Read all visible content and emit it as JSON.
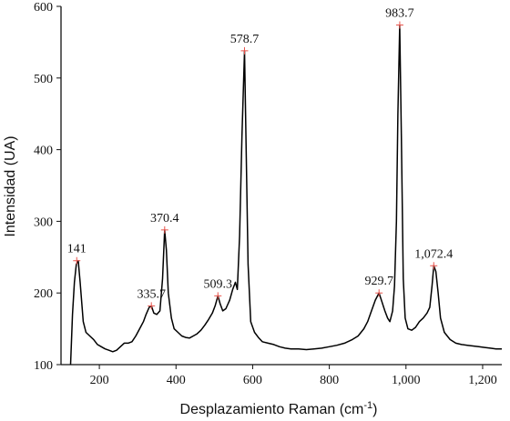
{
  "chart_data": {
    "type": "line",
    "title": "",
    "xlabel": "Desplazamiento Raman (cm",
    "xlabel_superscript": "-1",
    "xlabel_close": ")",
    "ylabel": "Intensidad (UA)",
    "xlim": [
      100,
      1250
    ],
    "ylim": [
      100,
      600
    ],
    "x_ticks": [
      {
        "value": 200,
        "label": "200"
      },
      {
        "value": 400,
        "label": "400"
      },
      {
        "value": 600,
        "label": "600"
      },
      {
        "value": 800,
        "label": "800"
      },
      {
        "value": 1000,
        "label": "1,000"
      },
      {
        "value": 1200,
        "label": "1,200"
      }
    ],
    "y_ticks": [
      {
        "value": 100,
        "label": "100"
      },
      {
        "value": 200,
        "label": "200"
      },
      {
        "value": 300,
        "label": "300"
      },
      {
        "value": 400,
        "label": "400"
      },
      {
        "value": 500,
        "label": "500"
      },
      {
        "value": 600,
        "label": "600"
      }
    ],
    "grid": false,
    "legend": "none",
    "colors": {
      "line": "#000000",
      "marker": "#e8524a",
      "axis": "#111111"
    },
    "series": [
      {
        "x": [
          125,
          130,
          135,
          140,
          145,
          150,
          158,
          165,
          175,
          185,
          195,
          205,
          215,
          225,
          235,
          245,
          255,
          265,
          275,
          285,
          295,
          305,
          315,
          322,
          330,
          335.7,
          342,
          350,
          358,
          365,
          370.4,
          375,
          380,
          388,
          395,
          405,
          415,
          425,
          435,
          445,
          455,
          465,
          475,
          485,
          495,
          502,
          509.3,
          515,
          522,
          530,
          540,
          548,
          555,
          560,
          566,
          572,
          578.7,
          583,
          588,
          595,
          605,
          615,
          625,
          640,
          655,
          670,
          685,
          700,
          720,
          740,
          760,
          780,
          800,
          820,
          840,
          860,
          875,
          890,
          900,
          910,
          920,
          929.7,
          937,
          945,
          952,
          958,
          965,
          970,
          975,
          979,
          983.7,
          988,
          993,
          998,
          1005,
          1015,
          1025,
          1035,
          1045,
          1055,
          1062,
          1068,
          1072.4,
          1078,
          1084,
          1090,
          1100,
          1115,
          1130,
          1145,
          1160,
          1175,
          1190,
          1205,
          1220,
          1235,
          1250
        ],
        "y": [
          100,
          170,
          215,
          240,
          245,
          215,
          160,
          145,
          140,
          135,
          128,
          125,
          122,
          120,
          118,
          120,
          125,
          130,
          130,
          132,
          140,
          150,
          160,
          170,
          180,
          182,
          172,
          170,
          175,
          220,
          288,
          260,
          200,
          165,
          150,
          145,
          140,
          138,
          137,
          140,
          143,
          148,
          155,
          163,
          172,
          182,
          196,
          185,
          175,
          178,
          190,
          205,
          215,
          205,
          280,
          420,
          538,
          400,
          240,
          160,
          145,
          138,
          132,
          130,
          128,
          125,
          123,
          122,
          122,
          121,
          122,
          123,
          125,
          127,
          130,
          135,
          140,
          150,
          160,
          175,
          190,
          200,
          188,
          175,
          165,
          160,
          175,
          210,
          300,
          450,
          574,
          420,
          220,
          165,
          150,
          148,
          152,
          160,
          165,
          172,
          180,
          210,
          238,
          230,
          200,
          165,
          145,
          135,
          130,
          128,
          127,
          126,
          125,
          124,
          123,
          122,
          122
        ]
      }
    ],
    "peaks": [
      {
        "x": 141,
        "y": 245,
        "label": "141"
      },
      {
        "x": 335.7,
        "y": 182,
        "label": "335.7"
      },
      {
        "x": 370.4,
        "y": 288,
        "label": "370.4"
      },
      {
        "x": 509.3,
        "y": 196,
        "label": "509.3"
      },
      {
        "x": 578.7,
        "y": 538,
        "label": "578.7"
      },
      {
        "x": 929.7,
        "y": 200,
        "label": "929.7"
      },
      {
        "x": 983.7,
        "y": 574,
        "label": "983.7"
      },
      {
        "x": 1072.4,
        "y": 238,
        "label": "1,072.4"
      }
    ]
  }
}
